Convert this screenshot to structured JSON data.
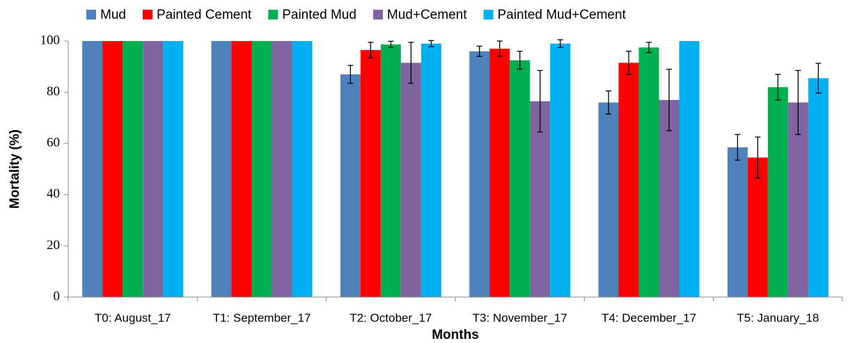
{
  "chart_data": {
    "type": "bar",
    "xlabel": "Months",
    "ylabel": "Mortality (%)",
    "categories": [
      "T0: August_17",
      "T1: September_17",
      "T2: October_17",
      "T3: November_17",
      "T4: December_17",
      "T5: January_18"
    ],
    "series": [
      {
        "name": "Mud",
        "color": "#4f81bd",
        "values": [
          100,
          100,
          87,
          96,
          76,
          58.5
        ],
        "errors": [
          0,
          0,
          3.5,
          2,
          4.5,
          5
        ]
      },
      {
        "name": "Painted Cement",
        "color": "#ff0000",
        "values": [
          100,
          100,
          96.5,
          97,
          91.5,
          54.5
        ],
        "errors": [
          0,
          0,
          3,
          3,
          4.5,
          8
        ]
      },
      {
        "name": "Painted Mud",
        "color": "#00b050",
        "values": [
          100,
          100,
          98.7,
          92.5,
          97.5,
          82
        ],
        "errors": [
          0,
          0,
          1.2,
          3.5,
          2,
          5
        ]
      },
      {
        "name": "Mud+Cement",
        "color": "#8064a2",
        "values": [
          100,
          100,
          91.5,
          76.5,
          77,
          76
        ],
        "errors": [
          0,
          0,
          8,
          12,
          12,
          12.5
        ]
      },
      {
        "name": "Painted Mud+Cement",
        "color": "#00b0f0",
        "values": [
          100,
          100,
          99,
          99,
          100,
          85.5
        ],
        "errors": [
          0,
          0,
          1.2,
          1.5,
          0,
          5.8
        ]
      }
    ],
    "ylim": [
      0,
      100
    ],
    "yticks": [
      0,
      20,
      40,
      60,
      80,
      100
    ],
    "grid": false,
    "legend": "top"
  }
}
